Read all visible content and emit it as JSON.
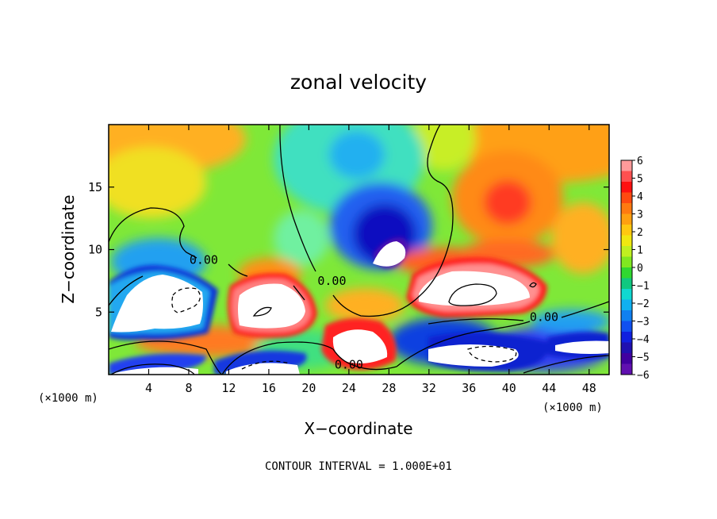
{
  "chart_data": {
    "type": "heatmap",
    "title": "zonal velocity",
    "xlabel": "X−coordinate",
    "ylabel": "Z−coordinate",
    "x_unit_left": "(×1000 m)",
    "x_unit_right": "(×1000 m)",
    "footer": "CONTOUR INTERVAL = 1.000E+01",
    "xlim": [
      0,
      50
    ],
    "ylim": [
      0,
      20
    ],
    "x_ticks": [
      4,
      8,
      12,
      16,
      20,
      24,
      28,
      32,
      36,
      40,
      44,
      48
    ],
    "y_ticks": [
      5,
      10,
      15
    ],
    "x_tick_labels": [
      "4",
      "8",
      "12",
      "16",
      "20",
      "24",
      "28",
      "32",
      "36",
      "40",
      "44",
      "48"
    ],
    "y_tick_labels": [
      "5",
      "10",
      "15"
    ],
    "colorbar": {
      "range": [
        -6,
        6
      ],
      "labels": [
        "6",
        "5",
        "4",
        "3",
        "2",
        "1",
        "0",
        "−1",
        "−2",
        "−3",
        "−4",
        "−5",
        "−6"
      ]
    },
    "contour_labels": [
      {
        "text": "0.00",
        "x": 9.5,
        "z": 9.0
      },
      {
        "text": "0.00",
        "x": 22.3,
        "z": 7.3
      },
      {
        "text": "0.00",
        "x": 24.0,
        "z": 0.6
      },
      {
        "text": "0.00",
        "x": 43.5,
        "z": 4.4
      }
    ]
  }
}
